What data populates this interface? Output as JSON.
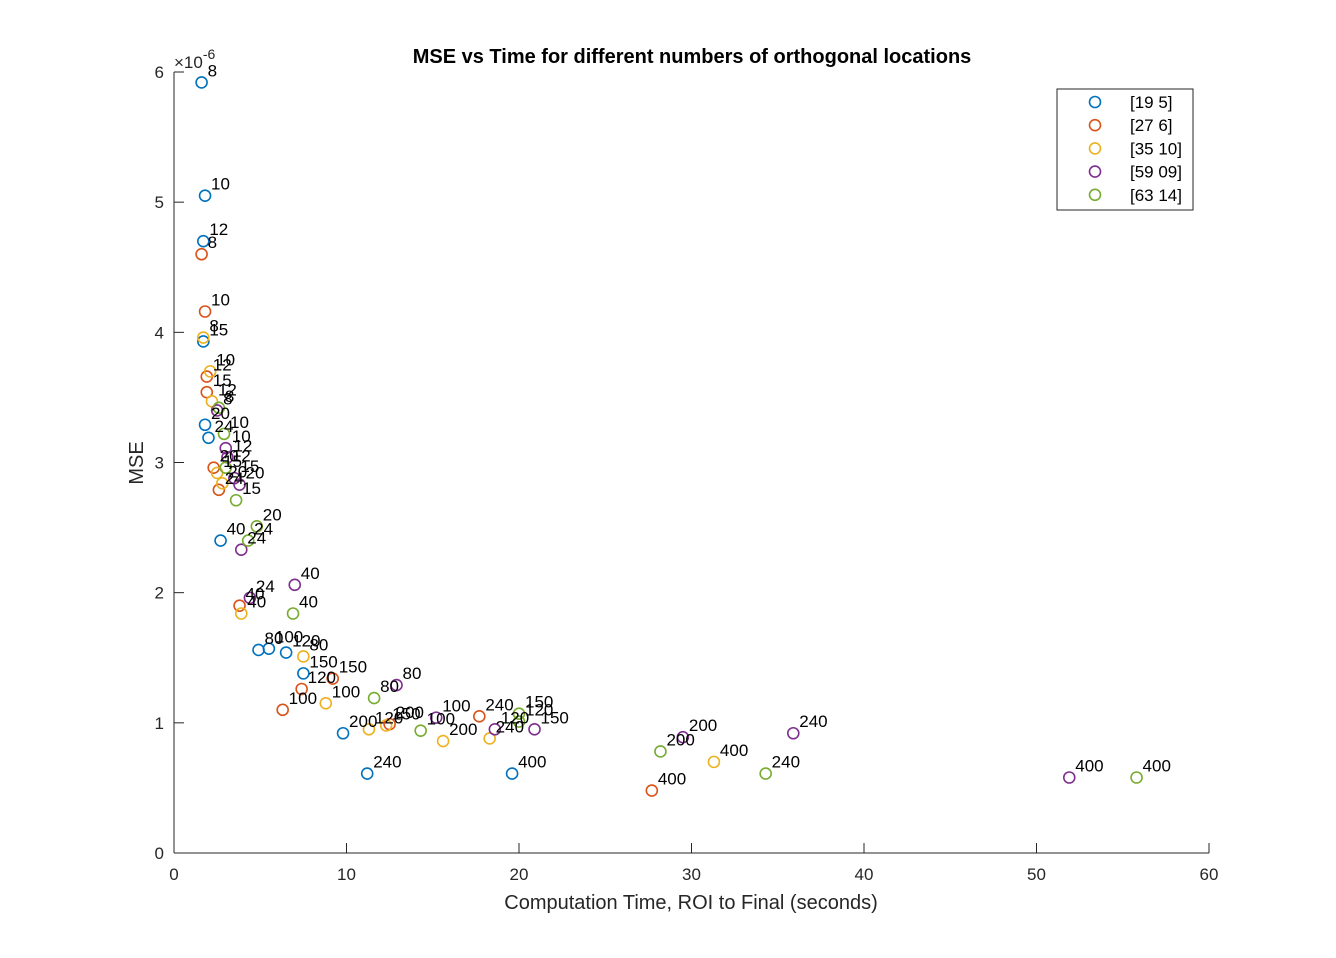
{
  "chart_data": {
    "type": "scatter",
    "title": "MSE vs Time for different numbers of orthogonal locations",
    "xlabel": "Computation Time, ROI to Final (seconds)",
    "ylabel": "MSE",
    "y_exponent": "×10",
    "y_exponent_power": "-6",
    "xlim": [
      0,
      60
    ],
    "ylim": [
      0,
      6
    ],
    "xticks": [
      "0",
      "10",
      "20",
      "30",
      "40",
      "50",
      "60"
    ],
    "yticks": [
      "0",
      "1",
      "2",
      "3",
      "4",
      "5",
      "6"
    ],
    "grid": false,
    "legend_position": "top-right",
    "series": [
      {
        "name": "[19 5]",
        "color": "#0072BD",
        "points": [
          {
            "x": 1.6,
            "y": 5.92,
            "label": "8"
          },
          {
            "x": 1.8,
            "y": 5.05,
            "label": "10"
          },
          {
            "x": 1.7,
            "y": 4.7,
            "label": "12"
          },
          {
            "x": 1.7,
            "y": 3.93,
            "label": "15"
          },
          {
            "x": 1.8,
            "y": 3.29,
            "label": "20"
          },
          {
            "x": 2.0,
            "y": 3.19,
            "label": "24"
          },
          {
            "x": 2.7,
            "y": 2.4,
            "label": "40"
          },
          {
            "x": 4.9,
            "y": 1.56,
            "label": "80"
          },
          {
            "x": 5.5,
            "y": 1.57,
            "label": "100"
          },
          {
            "x": 6.5,
            "y": 1.54,
            "label": "120"
          },
          {
            "x": 7.5,
            "y": 1.38,
            "label": "150"
          },
          {
            "x": 9.8,
            "y": 0.92,
            "label": "200"
          },
          {
            "x": 11.2,
            "y": 0.61,
            "label": "240"
          },
          {
            "x": 19.6,
            "y": 0.61,
            "label": "400"
          }
        ]
      },
      {
        "name": "[27 6]",
        "color": "#D95319",
        "points": [
          {
            "x": 1.6,
            "y": 4.6,
            "label": "8"
          },
          {
            "x": 1.8,
            "y": 4.16,
            "label": "10"
          },
          {
            "x": 1.9,
            "y": 3.66,
            "label": "12"
          },
          {
            "x": 1.9,
            "y": 3.54,
            "label": "15"
          },
          {
            "x": 2.3,
            "y": 2.96,
            "label": "20"
          },
          {
            "x": 2.6,
            "y": 2.79,
            "label": "24"
          },
          {
            "x": 3.8,
            "y": 1.9,
            "label": "40"
          },
          {
            "x": 6.3,
            "y": 1.1,
            "label": "100"
          },
          {
            "x": 7.4,
            "y": 1.26,
            "label": "120"
          },
          {
            "x": 9.2,
            "y": 1.34,
            "label": "150"
          },
          {
            "x": 12.5,
            "y": 0.99,
            "label": "200"
          },
          {
            "x": 17.7,
            "y": 1.05,
            "label": "240"
          },
          {
            "x": 27.7,
            "y": 0.48,
            "label": "400"
          }
        ]
      },
      {
        "name": "[35 10]",
        "color": "#EDB120",
        "points": [
          {
            "x": 1.7,
            "y": 3.96,
            "label": "8"
          },
          {
            "x": 2.1,
            "y": 3.7,
            "label": "10"
          },
          {
            "x": 2.2,
            "y": 3.47,
            "label": "12"
          },
          {
            "x": 2.5,
            "y": 2.92,
            "label": "15"
          },
          {
            "x": 2.8,
            "y": 2.84,
            "label": "20"
          },
          {
            "x": 3.9,
            "y": 1.84,
            "label": "40"
          },
          {
            "x": 7.5,
            "y": 1.51,
            "label": "80"
          },
          {
            "x": 8.8,
            "y": 1.15,
            "label": "100"
          },
          {
            "x": 11.3,
            "y": 0.95,
            "label": "120"
          },
          {
            "x": 12.3,
            "y": 0.98,
            "label": "150"
          },
          {
            "x": 15.6,
            "y": 0.86,
            "label": "200"
          },
          {
            "x": 18.3,
            "y": 0.88,
            "label": "240"
          },
          {
            "x": 31.3,
            "y": 0.7,
            "label": "400"
          }
        ]
      },
      {
        "name": "[59 09]",
        "color": "#7E2F8E",
        "points": [
          {
            "x": 2.5,
            "y": 3.4,
            "label": "8"
          },
          {
            "x": 3.0,
            "y": 3.11,
            "label": "10"
          },
          {
            "x": 3.1,
            "y": 3.04,
            "label": "12"
          },
          {
            "x": 3.5,
            "y": 2.88,
            "label": "15"
          },
          {
            "x": 3.8,
            "y": 2.83,
            "label": "20"
          },
          {
            "x": 3.9,
            "y": 2.33,
            "label": "24"
          },
          {
            "x": 4.4,
            "y": 1.96,
            "label": "24"
          },
          {
            "x": 7.0,
            "y": 2.06,
            "label": "40"
          },
          {
            "x": 12.9,
            "y": 1.29,
            "label": "80"
          },
          {
            "x": 15.2,
            "y": 1.04,
            "label": "100"
          },
          {
            "x": 18.6,
            "y": 0.95,
            "label": "120"
          },
          {
            "x": 20.9,
            "y": 0.95,
            "label": "150"
          },
          {
            "x": 29.5,
            "y": 0.89,
            "label": "200"
          },
          {
            "x": 35.9,
            "y": 0.92,
            "label": "240"
          },
          {
            "x": 51.9,
            "y": 0.58,
            "label": "400"
          }
        ]
      },
      {
        "name": "[63 14]",
        "color": "#77AC30",
        "points": [
          {
            "x": 2.6,
            "y": 3.42,
            "label": "8"
          },
          {
            "x": 2.9,
            "y": 3.22,
            "label": "10"
          },
          {
            "x": 3.0,
            "y": 2.96,
            "label": "12"
          },
          {
            "x": 3.6,
            "y": 2.71,
            "label": "15"
          },
          {
            "x": 4.8,
            "y": 2.51,
            "label": "20"
          },
          {
            "x": 4.3,
            "y": 2.4,
            "label": "24"
          },
          {
            "x": 6.9,
            "y": 1.84,
            "label": "40"
          },
          {
            "x": 11.6,
            "y": 1.19,
            "label": "80"
          },
          {
            "x": 14.3,
            "y": 0.94,
            "label": "100"
          },
          {
            "x": 20.0,
            "y": 1.01,
            "label": "120"
          },
          {
            "x": 20.0,
            "y": 1.07,
            "label": "150"
          },
          {
            "x": 28.2,
            "y": 0.78,
            "label": "200"
          },
          {
            "x": 34.3,
            "y": 0.61,
            "label": "240"
          },
          {
            "x": 55.8,
            "y": 0.58,
            "label": "400"
          }
        ]
      }
    ]
  }
}
